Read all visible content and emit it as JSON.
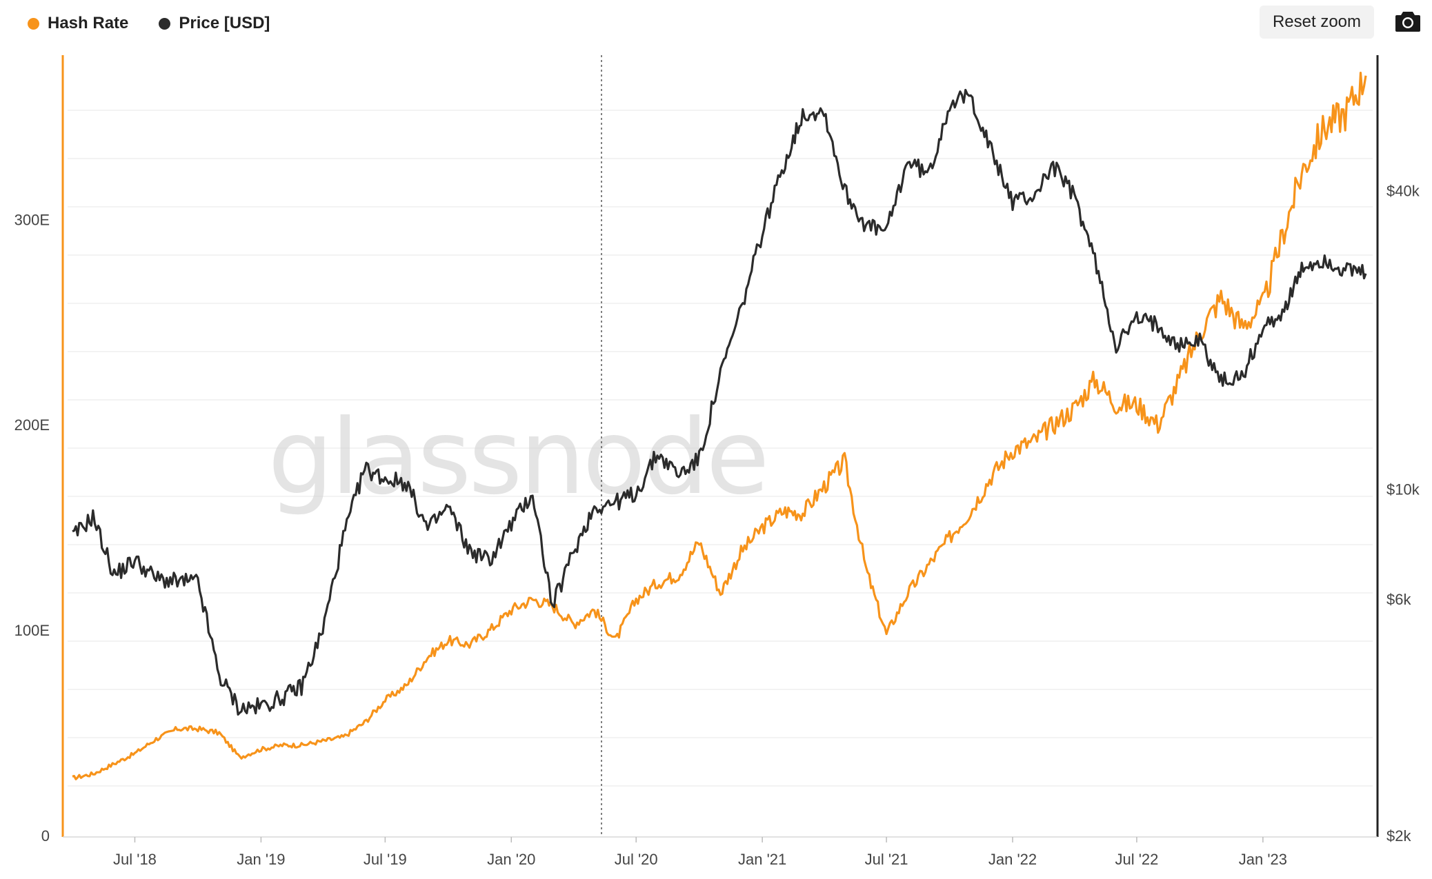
{
  "legend": {
    "hash_rate": "Hash Rate",
    "price": "Price [USD]"
  },
  "toolbar": {
    "reset_zoom": "Reset zoom",
    "camera_icon": "camera-icon"
  },
  "watermark": "glassnode",
  "colors": {
    "hash_rate": "#f7931a",
    "price": "#2b2b2b",
    "grid": "#ececec",
    "right_axis": "#222222"
  },
  "chart_data": {
    "type": "line",
    "x_ticks": [
      "Jul '18",
      "Jan '19",
      "Jul '19",
      "Jan '20",
      "Jul '20",
      "Jan '21",
      "Jul '21",
      "Jan '22",
      "Jul '22",
      "Jan '23"
    ],
    "x_range": [
      "2018-04-01",
      "2023-05-31"
    ],
    "y_left_ticks": [
      "0",
      "100E",
      "200E",
      "300E"
    ],
    "y_left_range": [
      0,
      380
    ],
    "y_right_ticks": [
      "$2k",
      "$6k",
      "$10k",
      "$40k"
    ],
    "y_right_range": [
      2000,
      75000
    ],
    "y_right_scale": "log",
    "series": [
      {
        "name": "Hash Rate",
        "axis": "left",
        "points": [
          [
            "2018-04-01",
            28
          ],
          [
            "2018-05-01",
            30
          ],
          [
            "2018-06-01",
            35
          ],
          [
            "2018-07-01",
            40
          ],
          [
            "2018-08-01",
            47
          ],
          [
            "2018-09-01",
            52
          ],
          [
            "2018-10-01",
            52
          ],
          [
            "2018-11-01",
            50
          ],
          [
            "2018-12-01",
            38
          ],
          [
            "2019-01-01",
            42
          ],
          [
            "2019-02-01",
            44
          ],
          [
            "2019-03-01",
            44
          ],
          [
            "2019-04-01",
            46
          ],
          [
            "2019-05-01",
            48
          ],
          [
            "2019-06-01",
            55
          ],
          [
            "2019-07-01",
            66
          ],
          [
            "2019-08-01",
            73
          ],
          [
            "2019-09-01",
            87
          ],
          [
            "2019-10-01",
            95
          ],
          [
            "2019-11-01",
            93
          ],
          [
            "2019-12-01",
            100
          ],
          [
            "2020-01-01",
            110
          ],
          [
            "2020-02-01",
            115
          ],
          [
            "2020-03-01",
            112
          ],
          [
            "2020-04-01",
            103
          ],
          [
            "2020-05-01",
            110
          ],
          [
            "2020-06-01",
            95
          ],
          [
            "2020-07-01",
            115
          ],
          [
            "2020-08-01",
            123
          ],
          [
            "2020-09-01",
            127
          ],
          [
            "2020-10-01",
            143
          ],
          [
            "2020-11-01",
            118
          ],
          [
            "2020-12-01",
            138
          ],
          [
            "2021-01-01",
            150
          ],
          [
            "2021-02-01",
            158
          ],
          [
            "2021-03-01",
            157
          ],
          [
            "2021-04-01",
            170
          ],
          [
            "2021-05-01",
            182
          ],
          [
            "2021-06-01",
            130
          ],
          [
            "2021-07-01",
            98
          ],
          [
            "2021-08-01",
            118
          ],
          [
            "2021-09-01",
            132
          ],
          [
            "2021-10-01",
            145
          ],
          [
            "2021-11-01",
            158
          ],
          [
            "2021-12-01",
            175
          ],
          [
            "2022-01-01",
            188
          ],
          [
            "2022-02-01",
            192
          ],
          [
            "2022-03-01",
            200
          ],
          [
            "2022-04-01",
            208
          ],
          [
            "2022-05-01",
            222
          ],
          [
            "2022-06-01",
            210
          ],
          [
            "2022-07-01",
            210
          ],
          [
            "2022-08-01",
            200
          ],
          [
            "2022-09-01",
            222
          ],
          [
            "2022-10-01",
            245
          ],
          [
            "2022-11-01",
            262
          ],
          [
            "2022-12-01",
            248
          ],
          [
            "2023-01-01",
            258
          ],
          [
            "2023-02-01",
            295
          ],
          [
            "2023-03-01",
            325
          ],
          [
            "2023-04-01",
            345
          ],
          [
            "2023-05-01",
            352
          ],
          [
            "2023-05-31",
            370
          ]
        ]
      },
      {
        "name": "Price [USD]",
        "axis": "right",
        "points": [
          [
            "2018-04-01",
            8000
          ],
          [
            "2018-05-01",
            8800
          ],
          [
            "2018-06-01",
            6700
          ],
          [
            "2018-07-01",
            7200
          ],
          [
            "2018-08-01",
            6600
          ],
          [
            "2018-09-01",
            6500
          ],
          [
            "2018-10-01",
            6500
          ],
          [
            "2018-11-01",
            4200
          ],
          [
            "2018-12-01",
            3600
          ],
          [
            "2019-01-01",
            3650
          ],
          [
            "2019-02-01",
            3800
          ],
          [
            "2019-03-01",
            4000
          ],
          [
            "2019-04-01",
            5200
          ],
          [
            "2019-05-01",
            8000
          ],
          [
            "2019-06-01",
            11000
          ],
          [
            "2019-07-01",
            10500
          ],
          [
            "2019-08-01",
            10300
          ],
          [
            "2019-09-01",
            8300
          ],
          [
            "2019-10-01",
            9200
          ],
          [
            "2019-11-01",
            7500
          ],
          [
            "2019-12-01",
            7200
          ],
          [
            "2020-01-01",
            8500
          ],
          [
            "2020-02-01",
            9800
          ],
          [
            "2020-03-01",
            5800
          ],
          [
            "2020-04-01",
            7500
          ],
          [
            "2020-05-01",
            9200
          ],
          [
            "2020-06-01",
            9400
          ],
          [
            "2020-07-01",
            9800
          ],
          [
            "2020-08-01",
            11800
          ],
          [
            "2020-09-01",
            10700
          ],
          [
            "2020-10-01",
            11500
          ],
          [
            "2020-11-01",
            17000
          ],
          [
            "2020-12-01",
            23000
          ],
          [
            "2021-01-01",
            33000
          ],
          [
            "2021-02-01",
            45000
          ],
          [
            "2021-03-01",
            57000
          ],
          [
            "2021-04-01",
            58000
          ],
          [
            "2021-05-01",
            40000
          ],
          [
            "2021-06-01",
            34000
          ],
          [
            "2021-07-01",
            33000
          ],
          [
            "2021-08-01",
            46000
          ],
          [
            "2021-09-01",
            43000
          ],
          [
            "2021-10-01",
            60000
          ],
          [
            "2021-11-01",
            62000
          ],
          [
            "2021-12-01",
            48000
          ],
          [
            "2022-01-01",
            38000
          ],
          [
            "2022-02-01",
            39000
          ],
          [
            "2022-03-01",
            45000
          ],
          [
            "2022-04-01",
            39000
          ],
          [
            "2022-05-01",
            29000
          ],
          [
            "2022-06-01",
            19500
          ],
          [
            "2022-07-01",
            22000
          ],
          [
            "2022-08-01",
            21500
          ],
          [
            "2022-09-01",
            19500
          ],
          [
            "2022-10-01",
            20000
          ],
          [
            "2022-11-01",
            16500
          ],
          [
            "2022-12-01",
            16800
          ],
          [
            "2023-01-01",
            21000
          ],
          [
            "2023-02-01",
            23000
          ],
          [
            "2023-03-01",
            28000
          ],
          [
            "2023-04-01",
            29000
          ],
          [
            "2023-05-01",
            27500
          ],
          [
            "2023-05-31",
            27200
          ]
        ]
      }
    ]
  }
}
